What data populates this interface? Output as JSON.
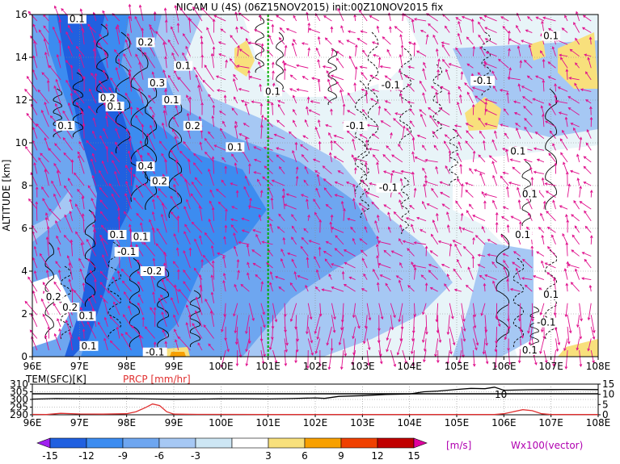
{
  "chart_data": {
    "title": "NICAM U (4S) (06Z15NOV2015) init:00Z10NOV2015 fix",
    "type": "heatmap",
    "main_panel": {
      "ylabel": "ALTITUDE [km]",
      "xlim": [
        96,
        108
      ],
      "ylim": [
        0,
        16
      ],
      "x_ticks": [
        "96E",
        "97E",
        "98E",
        "99E",
        "100E",
        "101E",
        "102E",
        "103E",
        "104E",
        "105E",
        "106E",
        "107E",
        "108E"
      ],
      "y_ticks": [
        "0",
        "2",
        "4",
        "6",
        "8",
        "10",
        "12",
        "14",
        "16"
      ],
      "marker_longitude": 101,
      "grid": true,
      "contour_labels": [
        {
          "lon": 96.95,
          "alt": 15.8,
          "text": "0.1"
        },
        {
          "lon": 98.4,
          "alt": 14.7,
          "text": "0.2"
        },
        {
          "lon": 99.2,
          "alt": 13.6,
          "text": "0.1"
        },
        {
          "lon": 98.65,
          "alt": 12.8,
          "text": "0.3"
        },
        {
          "lon": 97.6,
          "alt": 12.1,
          "text": "0.2"
        },
        {
          "lon": 97.75,
          "alt": 11.7,
          "text": "0.1"
        },
        {
          "lon": 98.95,
          "alt": 12.0,
          "text": "0.1"
        },
        {
          "lon": 96.7,
          "alt": 10.8,
          "text": "0.1"
        },
        {
          "lon": 99.4,
          "alt": 10.8,
          "text": "0.2"
        },
        {
          "lon": 100.3,
          "alt": 9.8,
          "text": "0.1"
        },
        {
          "lon": 98.4,
          "alt": 8.9,
          "text": "0.4"
        },
        {
          "lon": 98.7,
          "alt": 8.2,
          "text": "0.2"
        },
        {
          "lon": 101.1,
          "alt": 12.4,
          "text": "0.1"
        },
        {
          "lon": 103.6,
          "alt": 12.7,
          "text": "-0.1"
        },
        {
          "lon": 105.55,
          "alt": 12.9,
          "text": "-0.1"
        },
        {
          "lon": 102.85,
          "alt": 10.8,
          "text": "-0.1"
        },
        {
          "lon": 106.3,
          "alt": 9.6,
          "text": "0.1"
        },
        {
          "lon": 107.0,
          "alt": 15.0,
          "text": "0.1"
        },
        {
          "lon": 103.55,
          "alt": 7.9,
          "text": "-0.1"
        },
        {
          "lon": 106.55,
          "alt": 7.6,
          "text": "0.1"
        },
        {
          "lon": 97.8,
          "alt": 5.7,
          "text": "0.1"
        },
        {
          "lon": 98.3,
          "alt": 5.6,
          "text": "0.1"
        },
        {
          "lon": 98.0,
          "alt": 4.9,
          "text": "-0.1"
        },
        {
          "lon": 98.55,
          "alt": 4.0,
          "text": "-0.2"
        },
        {
          "lon": 106.4,
          "alt": 5.7,
          "text": "0.1"
        },
        {
          "lon": 96.45,
          "alt": 2.8,
          "text": "0.2"
        },
        {
          "lon": 96.8,
          "alt": 2.3,
          "text": "0.2"
        },
        {
          "lon": 97.15,
          "alt": 1.9,
          "text": "0.1"
        },
        {
          "lon": 97.2,
          "alt": 0.5,
          "text": "0.1"
        },
        {
          "lon": 98.6,
          "alt": 0.2,
          "text": "-0.1"
        },
        {
          "lon": 107.0,
          "alt": 2.9,
          "text": "0.1"
        },
        {
          "lon": 106.9,
          "alt": 1.6,
          "text": "-0.1"
        },
        {
          "lon": 106.55,
          "alt": 0.3,
          "text": "0.1"
        }
      ]
    },
    "sub_panel": {
      "left_label": "TEM(SFC)[K]",
      "right_label": "PRCP [mm/hr]",
      "left_ticks": [
        "290",
        "295",
        "300",
        "305",
        "310"
      ],
      "left_range": [
        290,
        310
      ],
      "right_ticks": [
        "0",
        "5",
        "10",
        "15"
      ],
      "right_range": [
        0,
        15
      ],
      "x_ticks": [
        "96E",
        "97E",
        "98E",
        "99E",
        "100E",
        "101E",
        "102E",
        "103E",
        "104E",
        "105E",
        "106E",
        "107E",
        "108E"
      ],
      "inline_label": "10",
      "temperature": {
        "lon": [
          96,
          96.5,
          97,
          97.5,
          98,
          98.5,
          99,
          99.5,
          100,
          100.5,
          101,
          101.5,
          102,
          102.2,
          102.5,
          103,
          103.5,
          104,
          104.3,
          104.6,
          105,
          105.3,
          105.6,
          105.8,
          106,
          106.5,
          107,
          107.5,
          108
        ],
        "values": [
          300.2,
          300.6,
          300.5,
          300.4,
          300.6,
          300.3,
          300.1,
          300.2,
          300.4,
          300.5,
          300.3,
          300.6,
          301.0,
          300.7,
          302.0,
          302.5,
          303.2,
          303.6,
          305.0,
          305.5,
          306.5,
          307.2,
          307.0,
          308.0,
          306.0,
          306.3,
          306.4,
          306.5,
          306.4
        ]
      },
      "precipitation": {
        "lon": [
          96,
          96.3,
          96.6,
          97,
          97.5,
          98,
          98.2,
          98.4,
          98.55,
          98.7,
          98.85,
          99,
          99.5,
          100,
          101,
          102,
          103,
          104,
          105,
          105.8,
          106,
          106.2,
          106.4,
          106.6,
          106.8,
          107,
          108
        ],
        "values": [
          0.2,
          0.1,
          0.7,
          0.4,
          0.3,
          0.5,
          1.5,
          3.5,
          5.3,
          4.5,
          1.5,
          0.3,
          0.2,
          0.2,
          0.1,
          0.1,
          0.1,
          0.1,
          0.1,
          0.1,
          0.5,
          1.5,
          2.5,
          2.0,
          0.5,
          0.1,
          0.1
        ]
      }
    },
    "colorbar": {
      "ticks": [
        "-15",
        "-12",
        "-9",
        "-6",
        "-3",
        "3",
        "6",
        "9",
        "12",
        "15"
      ],
      "unit": "[m/s]",
      "colors": [
        "#a020f0",
        "#2060e0",
        "#3c8cf0",
        "#6ea6f0",
        "#a6c8f4",
        "#cde6f4",
        "#ffffff",
        "#f8e07c",
        "#f8a000",
        "#f04000",
        "#c00000",
        "#e000a0"
      ],
      "vector_label": "Wx100(vector)"
    }
  }
}
